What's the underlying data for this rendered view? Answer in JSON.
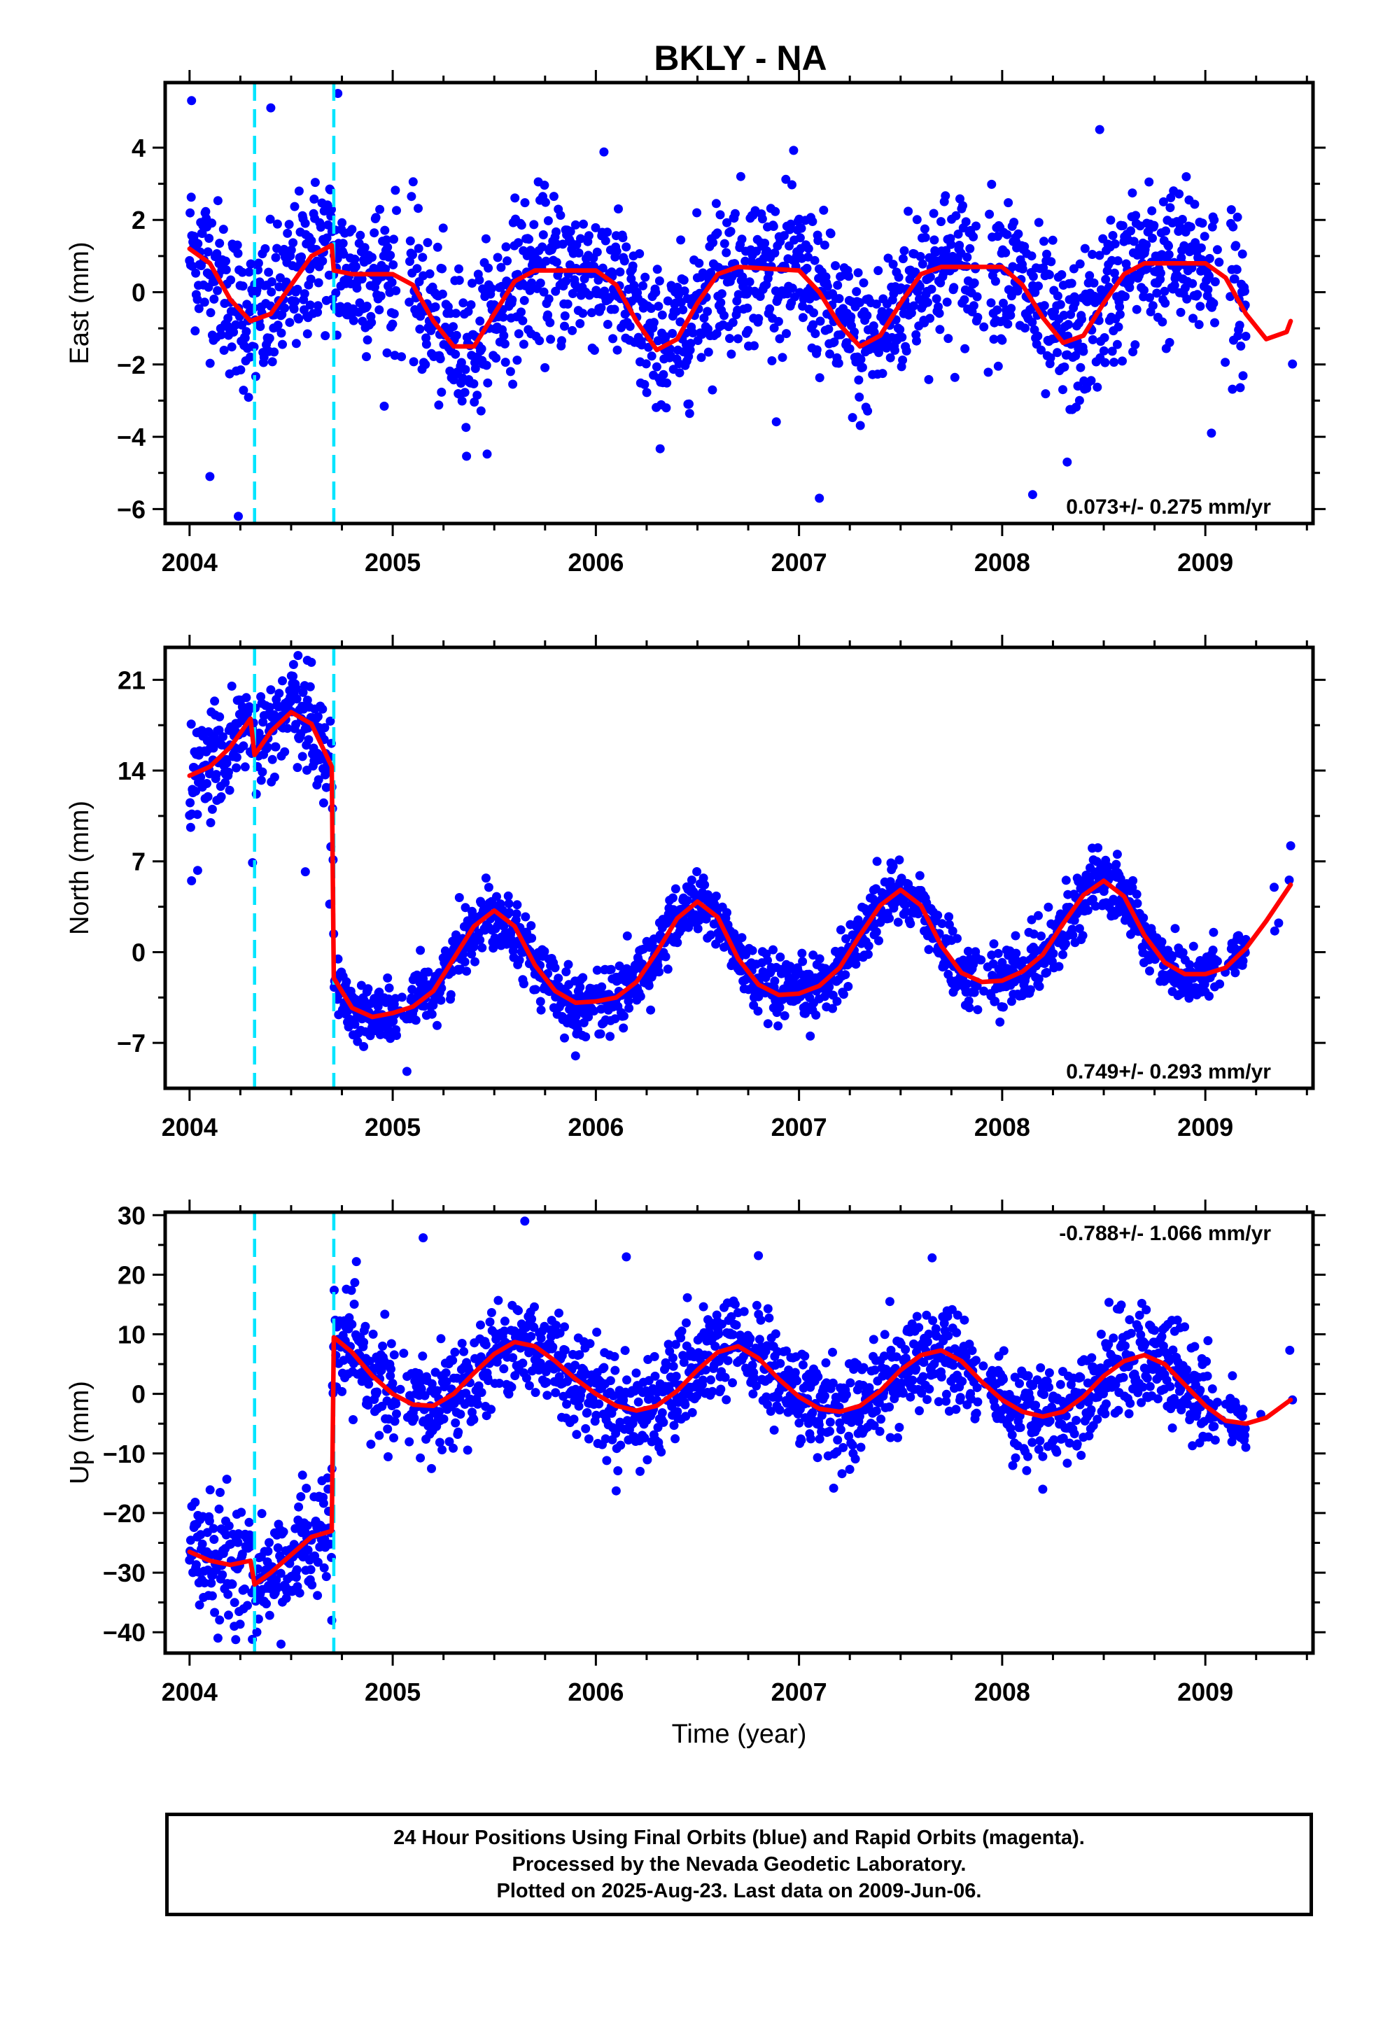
{
  "title": "BKLY - NA",
  "xlabel": "Time (year)",
  "colors": {
    "data": "#0000ff",
    "model": "#ff0000",
    "offsets": "#00e5ff",
    "frame": "#000000"
  },
  "offset_epochs": [
    2004.32,
    2004.71
  ],
  "footer": {
    "line1": "24 Hour Positions Using Final Orbits (blue) and Rapid Orbits (magenta).",
    "line2": "Processed by the Nevada Geodetic Laboratory.",
    "line3": "Plotted on 2025-Aug-23. Last data on 2009-Jun-06."
  },
  "chart_data": [
    {
      "type": "scatter",
      "panel": "east",
      "ylabel": "East (mm)",
      "rate": "0.073+/- 0.275 mm/yr",
      "rate_position": "bottom-right",
      "xlim": [
        2003.88,
        2009.53
      ],
      "ylim": [
        -6.4,
        5.8
      ],
      "xticks": [
        2004,
        2005,
        2006,
        2007,
        2008,
        2009
      ],
      "yticks": [
        -6,
        -4,
        -2,
        0,
        2,
        4
      ],
      "ytick_labels": [
        "−6",
        "−4",
        "−2",
        "0",
        "2",
        "4"
      ],
      "model_knots": [
        [
          2004.0,
          1.2
        ],
        [
          2004.1,
          0.8
        ],
        [
          2004.2,
          -0.2
        ],
        [
          2004.3,
          -0.8
        ],
        [
          2004.4,
          -0.6
        ],
        [
          2004.5,
          0.2
        ],
        [
          2004.6,
          1.0
        ],
        [
          2004.7,
          1.3
        ],
        [
          2004.71,
          0.6
        ],
        [
          2004.8,
          0.5
        ],
        [
          2005.0,
          0.5
        ],
        [
          2005.1,
          0.2
        ],
        [
          2005.2,
          -0.8
        ],
        [
          2005.3,
          -1.5
        ],
        [
          2005.4,
          -1.5
        ],
        [
          2005.5,
          -0.6
        ],
        [
          2005.6,
          0.3
        ],
        [
          2005.7,
          0.6
        ],
        [
          2006.0,
          0.6
        ],
        [
          2006.1,
          0.2
        ],
        [
          2006.2,
          -0.8
        ],
        [
          2006.3,
          -1.6
        ],
        [
          2006.4,
          -1.3
        ],
        [
          2006.5,
          -0.3
        ],
        [
          2006.6,
          0.5
        ],
        [
          2006.7,
          0.7
        ],
        [
          2007.0,
          0.6
        ],
        [
          2007.1,
          0.0
        ],
        [
          2007.2,
          -0.9
        ],
        [
          2007.3,
          -1.5
        ],
        [
          2007.4,
          -1.2
        ],
        [
          2007.5,
          -0.3
        ],
        [
          2007.6,
          0.5
        ],
        [
          2007.7,
          0.7
        ],
        [
          2008.0,
          0.7
        ],
        [
          2008.1,
          0.2
        ],
        [
          2008.2,
          -0.7
        ],
        [
          2008.3,
          -1.4
        ],
        [
          2008.4,
          -1.2
        ],
        [
          2008.5,
          -0.3
        ],
        [
          2008.6,
          0.5
        ],
        [
          2008.7,
          0.8
        ],
        [
          2009.0,
          0.8
        ],
        [
          2009.1,
          0.4
        ],
        [
          2009.2,
          -0.6
        ],
        [
          2009.3,
          -1.3
        ],
        [
          2009.4,
          -1.1
        ],
        [
          2009.42,
          -0.8
        ]
      ],
      "scatter_sd": 1.05,
      "outliers": [
        [
          2004.01,
          5.3
        ],
        [
          2004.1,
          -5.1
        ],
        [
          2004.24,
          -6.2
        ],
        [
          2004.4,
          5.1
        ],
        [
          2004.73,
          5.5
        ],
        [
          2007.1,
          -5.7
        ],
        [
          2008.15,
          -5.6
        ],
        [
          2008.32,
          -4.7
        ],
        [
          2008.48,
          4.5
        ],
        [
          2009.03,
          -3.9
        ]
      ]
    },
    {
      "type": "scatter",
      "panel": "north",
      "ylabel": "North (mm)",
      "rate": "0.749+/- 0.293 mm/yr",
      "rate_position": "bottom-right",
      "xlim": [
        2003.88,
        2009.53
      ],
      "ylim": [
        -10.5,
        23.5
      ],
      "xticks": [
        2004,
        2005,
        2006,
        2007,
        2008,
        2009
      ],
      "yticks": [
        -7,
        0,
        7,
        14,
        21
      ],
      "ytick_labels": [
        "−7",
        "0",
        "7",
        "14",
        "21"
      ],
      "model_knots": [
        [
          2004.0,
          13.6
        ],
        [
          2004.1,
          14.3
        ],
        [
          2004.2,
          15.8
        ],
        [
          2004.3,
          18.0
        ],
        [
          2004.32,
          15.2
        ],
        [
          2004.4,
          17.0
        ],
        [
          2004.5,
          18.5
        ],
        [
          2004.6,
          17.6
        ],
        [
          2004.7,
          14.3
        ],
        [
          2004.71,
          -2.0
        ],
        [
          2004.8,
          -4.3
        ],
        [
          2004.9,
          -5.0
        ],
        [
          2005.0,
          -4.7
        ],
        [
          2005.1,
          -4.2
        ],
        [
          2005.2,
          -3.0
        ],
        [
          2005.3,
          -0.5
        ],
        [
          2005.4,
          2.0
        ],
        [
          2005.5,
          3.2
        ],
        [
          2005.6,
          2.0
        ],
        [
          2005.7,
          -1.0
        ],
        [
          2005.8,
          -3.0
        ],
        [
          2005.9,
          -3.9
        ],
        [
          2006.0,
          -3.8
        ],
        [
          2006.1,
          -3.5
        ],
        [
          2006.2,
          -2.3
        ],
        [
          2006.3,
          0.0
        ],
        [
          2006.4,
          2.6
        ],
        [
          2006.5,
          3.9
        ],
        [
          2006.6,
          2.7
        ],
        [
          2006.7,
          -0.5
        ],
        [
          2006.8,
          -2.5
        ],
        [
          2006.9,
          -3.3
        ],
        [
          2007.0,
          -3.2
        ],
        [
          2007.1,
          -2.6
        ],
        [
          2007.2,
          -1.2
        ],
        [
          2007.3,
          1.3
        ],
        [
          2007.4,
          3.6
        ],
        [
          2007.5,
          4.8
        ],
        [
          2007.6,
          3.6
        ],
        [
          2007.7,
          0.5
        ],
        [
          2007.8,
          -1.6
        ],
        [
          2007.9,
          -2.3
        ],
        [
          2008.0,
          -2.2
        ],
        [
          2008.1,
          -1.5
        ],
        [
          2008.2,
          -0.2
        ],
        [
          2008.3,
          2.2
        ],
        [
          2008.4,
          4.4
        ],
        [
          2008.5,
          5.5
        ],
        [
          2008.6,
          4.3
        ],
        [
          2008.7,
          1.3
        ],
        [
          2008.8,
          -0.8
        ],
        [
          2008.9,
          -1.7
        ],
        [
          2009.0,
          -1.7
        ],
        [
          2009.1,
          -1.2
        ],
        [
          2009.2,
          0.3
        ],
        [
          2009.3,
          2.4
        ],
        [
          2009.42,
          5.2
        ]
      ],
      "scatter_sd": 1.2,
      "outliers": [
        [
          2004.01,
          5.5
        ],
        [
          2004.04,
          6.3
        ],
        [
          2004.31,
          6.9
        ],
        [
          2004.57,
          6.2
        ],
        [
          2004.69,
          3.7
        ],
        [
          2005.07,
          -9.2
        ],
        [
          2005.9,
          -8.0
        ],
        [
          2004.58,
          22.5
        ],
        [
          2009.42,
          8.2
        ]
      ]
    },
    {
      "type": "scatter",
      "panel": "up",
      "ylabel": "Up (mm)",
      "rate": "-0.788+/- 1.066 mm/yr",
      "rate_position": "top-right",
      "xlim": [
        2003.88,
        2009.53
      ],
      "ylim": [
        -43.5,
        30.5
      ],
      "xticks": [
        2004,
        2005,
        2006,
        2007,
        2008,
        2009
      ],
      "yticks": [
        -40,
        -30,
        -20,
        -10,
        0,
        10,
        20,
        30
      ],
      "ytick_labels": [
        "−40",
        "−30",
        "−20",
        "−10",
        "0",
        "10",
        "20",
        "30"
      ],
      "model_knots": [
        [
          2004.0,
          -26.5
        ],
        [
          2004.1,
          -28.0
        ],
        [
          2004.2,
          -28.7
        ],
        [
          2004.3,
          -28.0
        ],
        [
          2004.32,
          -32.0
        ],
        [
          2004.4,
          -30.0
        ],
        [
          2004.5,
          -27.0
        ],
        [
          2004.6,
          -24.0
        ],
        [
          2004.7,
          -23.0
        ],
        [
          2004.71,
          9.5
        ],
        [
          2004.8,
          7.0
        ],
        [
          2004.9,
          3.0
        ],
        [
          2005.0,
          0.0
        ],
        [
          2005.1,
          -1.8
        ],
        [
          2005.2,
          -2.0
        ],
        [
          2005.3,
          0.0
        ],
        [
          2005.4,
          3.5
        ],
        [
          2005.5,
          6.7
        ],
        [
          2005.6,
          8.7
        ],
        [
          2005.7,
          8.0
        ],
        [
          2005.8,
          5.5
        ],
        [
          2005.9,
          2.5
        ],
        [
          2006.0,
          0.0
        ],
        [
          2006.1,
          -2.0
        ],
        [
          2006.2,
          -2.8
        ],
        [
          2006.3,
          -2.0
        ],
        [
          2006.4,
          0.5
        ],
        [
          2006.5,
          4.0
        ],
        [
          2006.6,
          7.0
        ],
        [
          2006.7,
          8.0
        ],
        [
          2006.8,
          6.0
        ],
        [
          2006.9,
          2.5
        ],
        [
          2007.0,
          -0.5
        ],
        [
          2007.1,
          -2.5
        ],
        [
          2007.2,
          -3.0
        ],
        [
          2007.3,
          -2.0
        ],
        [
          2007.4,
          0.5
        ],
        [
          2007.5,
          4.0
        ],
        [
          2007.6,
          6.5
        ],
        [
          2007.7,
          7.3
        ],
        [
          2007.8,
          5.5
        ],
        [
          2007.9,
          2.0
        ],
        [
          2008.0,
          -1.0
        ],
        [
          2008.1,
          -3.0
        ],
        [
          2008.2,
          -3.8
        ],
        [
          2008.3,
          -3.0
        ],
        [
          2008.4,
          -0.5
        ],
        [
          2008.5,
          3.0
        ],
        [
          2008.6,
          5.5
        ],
        [
          2008.7,
          6.5
        ],
        [
          2008.8,
          5.0
        ],
        [
          2008.9,
          1.5
        ],
        [
          2009.0,
          -2.0
        ],
        [
          2009.1,
          -4.5
        ],
        [
          2009.2,
          -5.0
        ],
        [
          2009.3,
          -4.0
        ],
        [
          2009.42,
          -1.0
        ]
      ],
      "scatter_sd": 4.2,
      "outliers": [
        [
          2005.15,
          26.2
        ],
        [
          2005.65,
          29.0
        ],
        [
          2006.15,
          23.0
        ],
        [
          2006.8,
          23.2
        ],
        [
          2004.45,
          -42.0
        ],
        [
          2004.22,
          -39.0
        ],
        [
          2004.7,
          -38.0
        ],
        [
          2008.2,
          -16.0
        ]
      ]
    }
  ]
}
